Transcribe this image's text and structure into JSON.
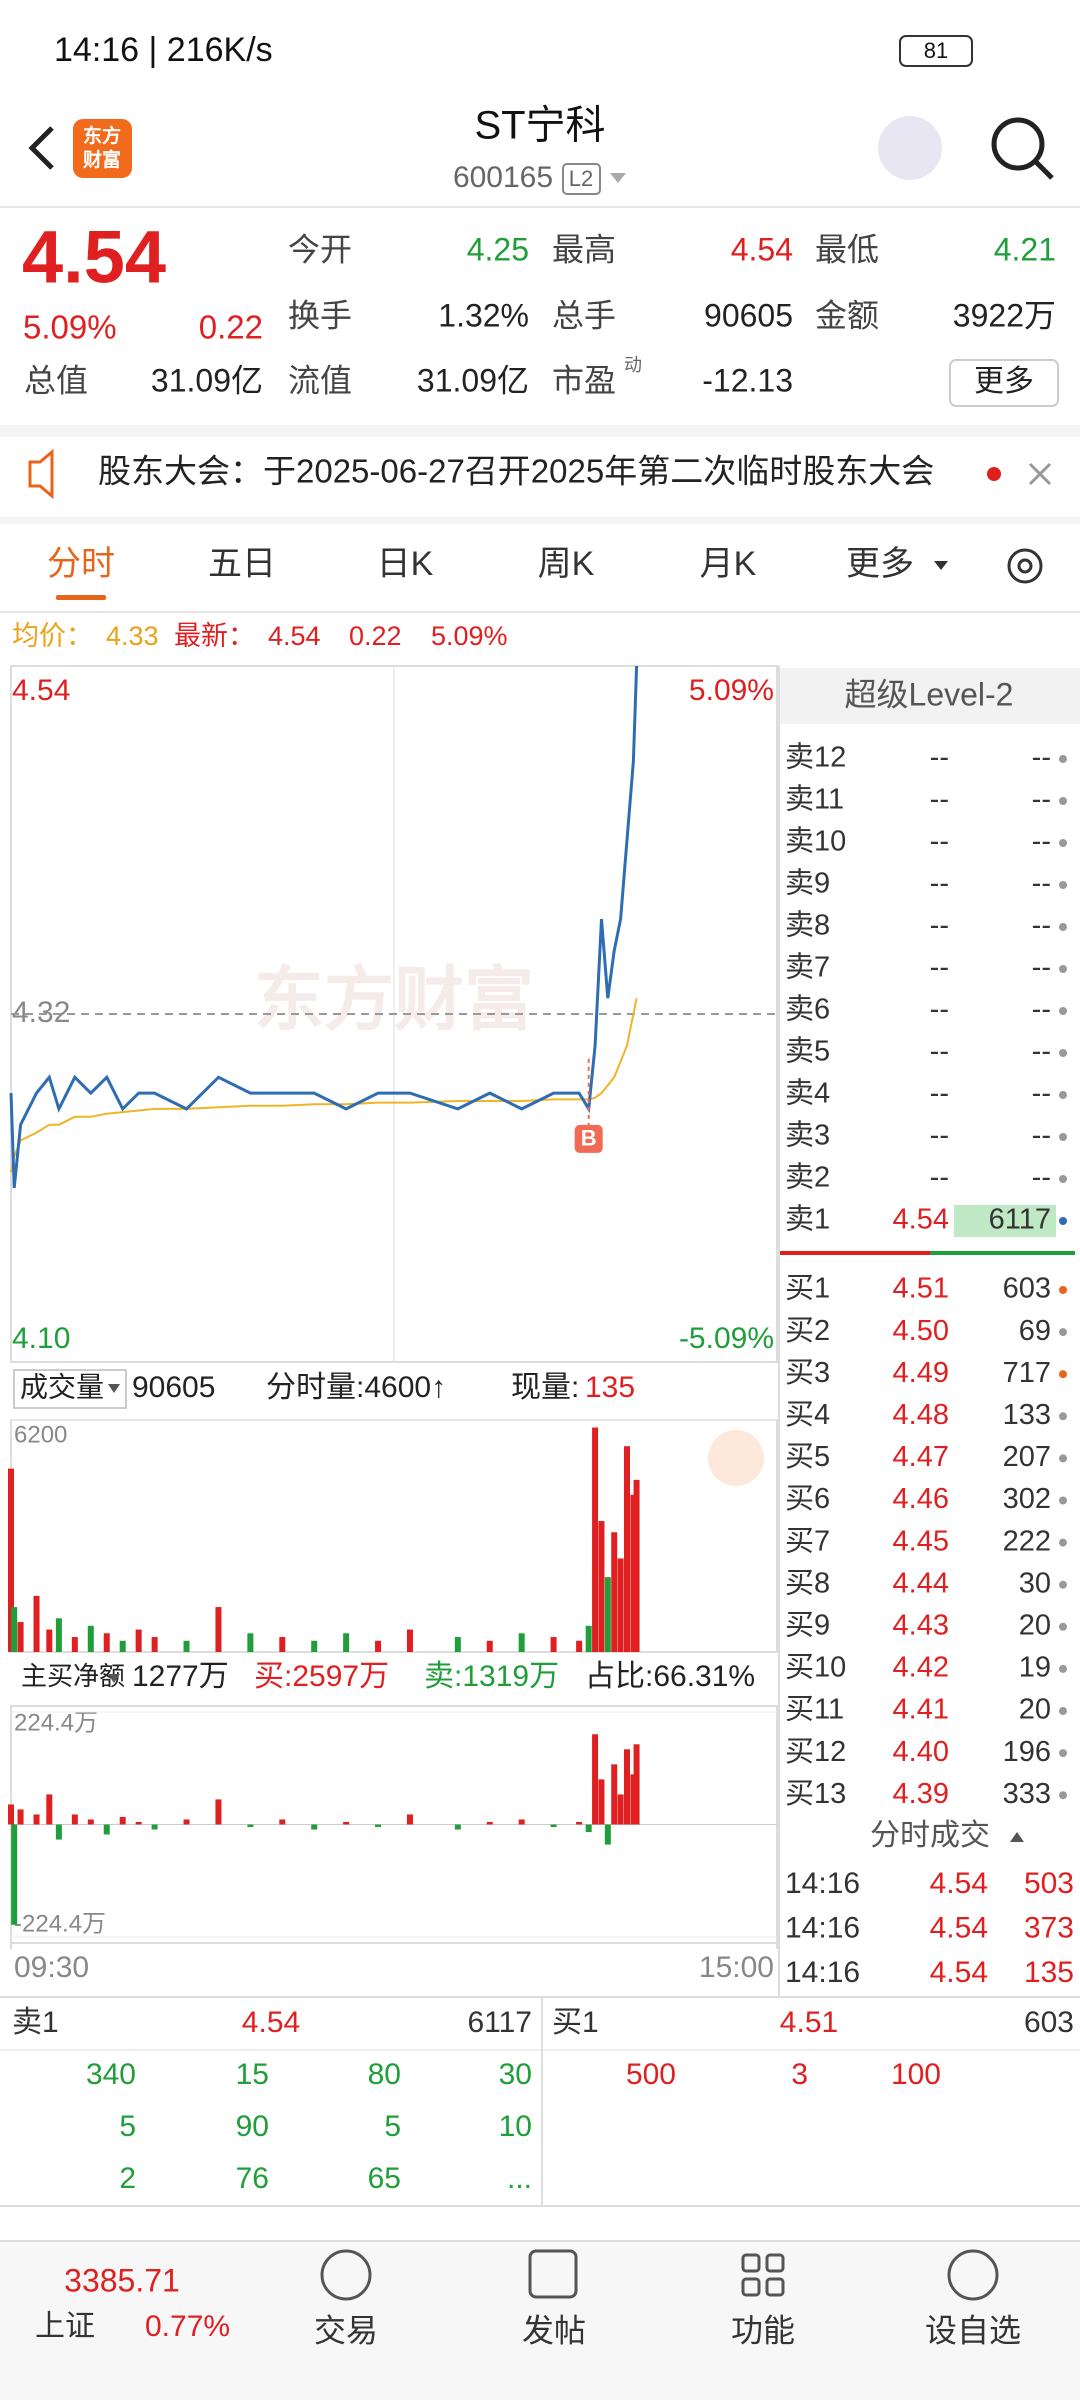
{
  "status_bar": {
    "time": "14:16 | 216K/s",
    "battery": "81"
  },
  "header": {
    "logo": [
      "东方",
      "财富"
    ],
    "title": "ST宁科",
    "code": "600165",
    "level": "L2"
  },
  "quote": {
    "price": "4.54",
    "change_pct": "5.09%",
    "change": "0.22",
    "fields": [
      [
        "今开",
        "4.25"
      ],
      [
        "最高",
        "4.54"
      ],
      [
        "最低",
        "4.21"
      ],
      [
        "换手",
        "1.32%"
      ],
      [
        "总手",
        "90605"
      ],
      [
        "金额",
        "3922万"
      ],
      [
        "总值",
        "31.09亿"
      ],
      [
        "流值",
        "31.09亿"
      ],
      [
        "市盈",
        "-12.13"
      ]
    ],
    "pe_sup": "动",
    "more": "更多"
  },
  "notice": "股东大会：于2025-06-27召开2025年第二次临时股东大会",
  "tabs": [
    "分时",
    "五日",
    "日K",
    "周K",
    "月K",
    "更多"
  ],
  "info_bar": {
    "avg_label": "均价：",
    "avg": "4.33",
    "last_label": "最新：",
    "last": "4.54",
    "change": "0.22",
    "change_pct": "5.09%"
  },
  "watermark": "东方财富",
  "chart_data": [
    {
      "type": "line",
      "x": [
        "09:30",
        "09:31",
        "09:33",
        "09:38",
        "09:42",
        "09:45",
        "09:50",
        "09:55",
        "10:00",
        "10:05",
        "10:10",
        "10:15",
        "10:25",
        "10:35",
        "10:45",
        "10:55",
        "11:05",
        "11:15",
        "11:25",
        "13:05",
        "13:20",
        "13:30",
        "13:40",
        "13:50",
        "13:58",
        "14:01",
        "14:03",
        "14:05",
        "14:07",
        "14:09",
        "14:11",
        "14:13",
        "14:15",
        "14:16"
      ],
      "series": [
        {
          "color": "#2f6db3",
          "values": [
            4.27,
            4.21,
            4.25,
            4.27,
            4.28,
            4.26,
            4.28,
            4.27,
            4.28,
            4.26,
            4.27,
            4.27,
            4.26,
            4.28,
            4.27,
            4.27,
            4.27,
            4.26,
            4.27,
            4.27,
            4.26,
            4.27,
            4.26,
            4.27,
            4.27,
            4.26,
            4.3,
            4.38,
            4.33,
            4.36,
            4.38,
            4.43,
            4.48,
            4.54
          ]
        },
        {
          "color": "#f0b429",
          "values": [
            4.22,
            4.23,
            4.24,
            4.245,
            4.25,
            4.25,
            4.255,
            4.255,
            4.257,
            4.258,
            4.259,
            4.26,
            4.26,
            4.261,
            4.262,
            4.262,
            4.263,
            4.263,
            4.264,
            4.264,
            4.265,
            4.265,
            4.265,
            4.266,
            4.266,
            4.266,
            4.267,
            4.27,
            4.275,
            4.28,
            4.29,
            4.3,
            4.32,
            4.33
          ]
        }
      ],
      "xlim": [
        "09:30",
        "15:00"
      ],
      "xticks": [
        "09:30",
        "15:00"
      ],
      "ylim": [
        4.1,
        4.54
      ],
      "yticks": [
        {
          "value": 4.54,
          "label": "4.54"
        },
        4.32,
        {
          "value": 4.1,
          "label": "4.10"
        }
      ],
      "y2lim": [
        -5.09,
        5.09
      ],
      "y2ticks": [
        {
          "value": 5.09,
          "label": "5.09%"
        },
        {
          "value": -5.09,
          "label": "-5.09%"
        }
      ],
      "marker": {
        "x": "14:01",
        "label": "B"
      }
    },
    {
      "type": "bar",
      "x": [
        "09:30",
        "09:31",
        "09:33",
        "09:38",
        "09:42",
        "09:45",
        "09:50",
        "09:55",
        "10:00",
        "10:05",
        "10:10",
        "10:15",
        "10:25",
        "10:35",
        "10:45",
        "10:55",
        "11:05",
        "11:15",
        "11:25",
        "13:05",
        "13:20",
        "13:30",
        "13:40",
        "13:50",
        "13:58",
        "14:01",
        "14:03",
        "14:05",
        "14:07",
        "14:09",
        "14:11",
        "14:13",
        "14:15",
        "14:16"
      ],
      "values": [
        4900,
        1200,
        800,
        1500,
        600,
        900,
        400,
        700,
        500,
        300,
        600,
        400,
        300,
        1200,
        500,
        400,
        300,
        500,
        300,
        600,
        400,
        300,
        500,
        400,
        300,
        700,
        6000,
        3500,
        2000,
        3200,
        2500,
        5500,
        4200,
        4600
      ],
      "colors": [
        "#e02020",
        "#1f9e3a",
        "#e02020",
        "#e02020",
        "#e02020",
        "#1f9e3a",
        "#e02020",
        "#1f9e3a",
        "#e02020",
        "#1f9e3a",
        "#e02020",
        "#e02020",
        "#1f9e3a",
        "#e02020",
        "#1f9e3a",
        "#e02020",
        "#1f9e3a",
        "#1f9e3a",
        "#e02020",
        "#e02020",
        "#1f9e3a",
        "#e02020",
        "#1f9e3a",
        "#e02020",
        "#e02020",
        "#1f9e3a",
        "#e02020",
        "#e02020",
        "#1f9e3a",
        "#e02020",
        "#e02020",
        "#e02020",
        "#e02020",
        "#e02020"
      ],
      "ylim": [
        0,
        6200
      ],
      "yticks": [
        6200
      ]
    },
    {
      "type": "bar",
      "x": [
        "09:30",
        "09:31",
        "09:33",
        "09:38",
        "09:42",
        "09:45",
        "09:50",
        "09:55",
        "10:00",
        "10:05",
        "10:10",
        "10:15",
        "10:25",
        "10:35",
        "10:45",
        "10:55",
        "11:05",
        "11:15",
        "11:25",
        "13:05",
        "13:20",
        "13:30",
        "13:40",
        "13:50",
        "13:58",
        "14:01",
        "14:03",
        "14:05",
        "14:07",
        "14:09",
        "14:11",
        "14:13",
        "14:15",
        "14:16"
      ],
      "values": [
        40,
        -200,
        30,
        20,
        60,
        -30,
        20,
        10,
        -20,
        15,
        5,
        -10,
        10,
        50,
        -5,
        10,
        -10,
        5,
        -5,
        20,
        -10,
        5,
        10,
        -5,
        5,
        -15,
        180,
        90,
        -40,
        120,
        60,
        150,
        100,
        160
      ],
      "up_color": "#e02020",
      "down_color": "#1f9e3a",
      "ylim": [
        -224.4,
        224.4
      ],
      "yticks": [
        {
          "value": 224.4,
          "label": "224.4万"
        },
        {
          "value": -224.4,
          "label": "-224.4万"
        }
      ]
    }
  ],
  "volume_bar": {
    "label": "成交量",
    "total": "90605",
    "minute_vol": "分时量:4600↑",
    "now_label": "现量:",
    "now": "135"
  },
  "flow_bar": {
    "label": "主买净额",
    "net": "1277万",
    "buy": "买:2597万",
    "sell": "卖:1319万",
    "ratio": "占比:66.31%"
  },
  "level2": {
    "title": "超级Level-2",
    "asks": [
      [
        "卖12",
        "--",
        "--"
      ],
      [
        "卖11",
        "--",
        "--"
      ],
      [
        "卖10",
        "--",
        "--"
      ],
      [
        "卖9",
        "--",
        "--"
      ],
      [
        "卖8",
        "--",
        "--"
      ],
      [
        "卖7",
        "--",
        "--"
      ],
      [
        "卖6",
        "--",
        "--"
      ],
      [
        "卖5",
        "--",
        "--"
      ],
      [
        "卖4",
        "--",
        "--"
      ],
      [
        "卖3",
        "--",
        "--"
      ],
      [
        "卖2",
        "--",
        "--"
      ],
      [
        "卖1",
        "4.54",
        "6117"
      ]
    ],
    "bids": [
      [
        "买1",
        "4.51",
        "603"
      ],
      [
        "买2",
        "4.50",
        "69"
      ],
      [
        "买3",
        "4.49",
        "717"
      ],
      [
        "买4",
        "4.48",
        "133"
      ],
      [
        "买5",
        "4.47",
        "207"
      ],
      [
        "买6",
        "4.46",
        "302"
      ],
      [
        "买7",
        "4.45",
        "222"
      ],
      [
        "买8",
        "4.44",
        "30"
      ],
      [
        "买9",
        "4.43",
        "20"
      ],
      [
        "买10",
        "4.42",
        "19"
      ],
      [
        "买11",
        "4.41",
        "20"
      ],
      [
        "买12",
        "4.40",
        "196"
      ],
      [
        "买13",
        "4.39",
        "333"
      ]
    ],
    "trades_title": "分时成交",
    "trades": [
      [
        "14:16",
        "4.54",
        "503"
      ],
      [
        "14:16",
        "4.54",
        "373"
      ],
      [
        "14:16",
        "4.54",
        "135"
      ]
    ]
  },
  "queue": {
    "ask": [
      "卖1",
      "4.54",
      "6117"
    ],
    "bid": [
      "买1",
      "4.51",
      "603"
    ],
    "ask_orders": [
      [
        "340",
        "15",
        "80",
        "30"
      ],
      [
        "5",
        "90",
        "5",
        "10"
      ],
      [
        "2",
        "76",
        "65",
        "..."
      ]
    ],
    "bid_orders": [
      [
        "500",
        "3",
        "100"
      ]
    ]
  },
  "nav": {
    "index_value": "3385.71",
    "index_name": "上证",
    "index_change": "0.77%",
    "items": [
      "交易",
      "发帖",
      "功能",
      "设自选"
    ]
  }
}
